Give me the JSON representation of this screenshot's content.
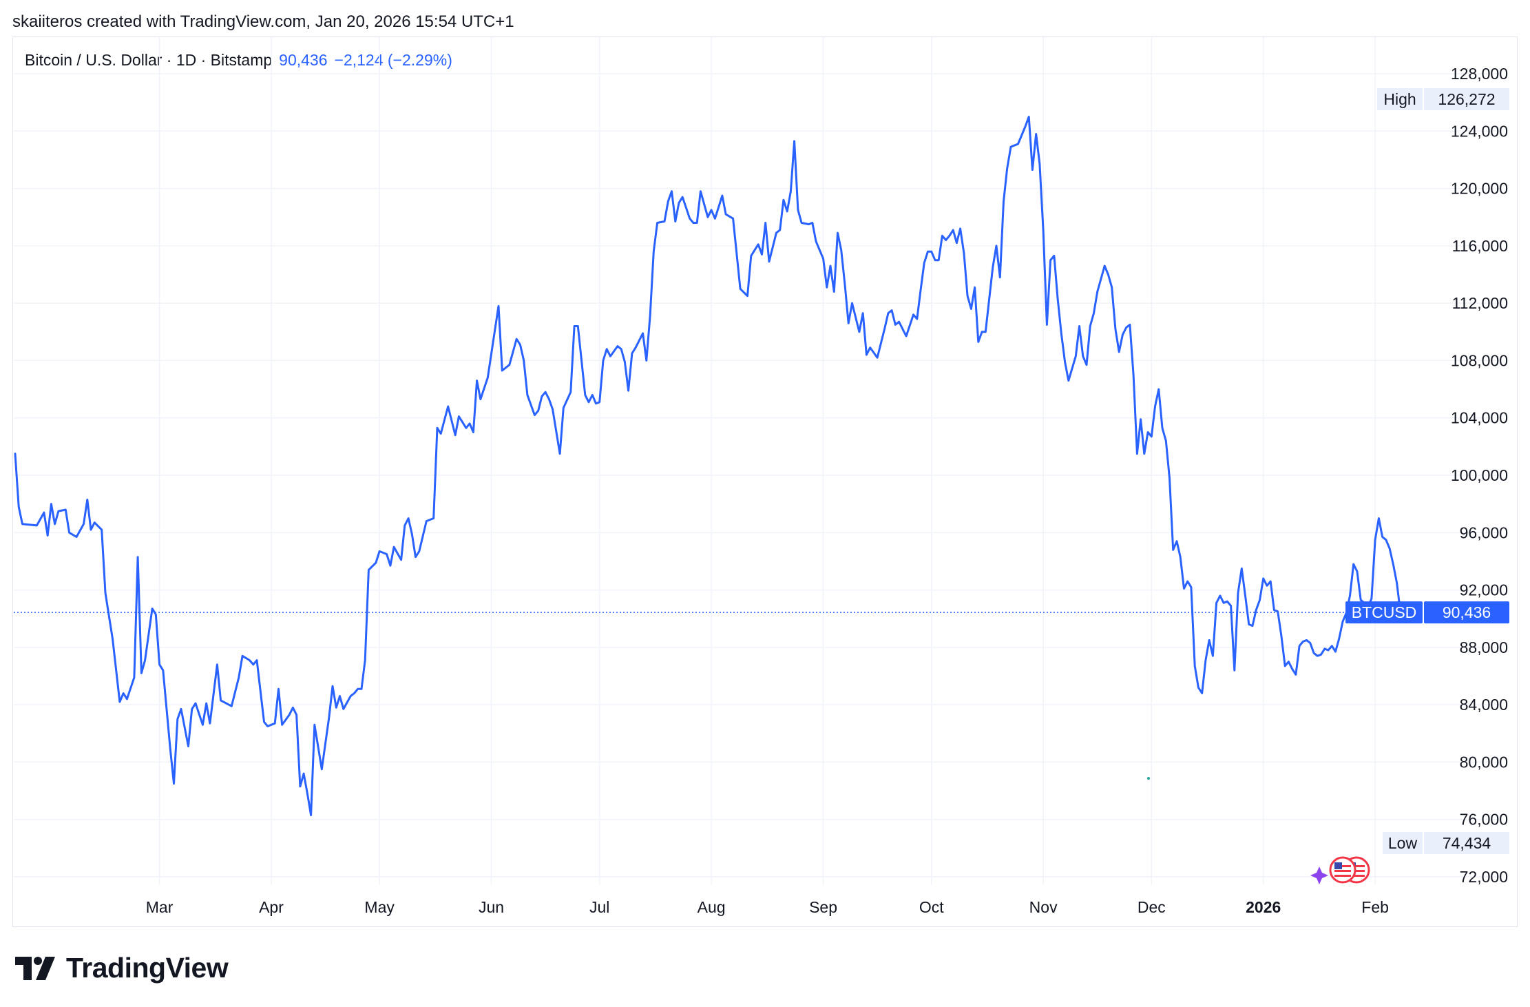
{
  "header": {
    "caption": "skaiiteros created with TradingView.com, Jan 20, 2026 15:54 UTC+1"
  },
  "legend": {
    "symbol": "Bitcoin / U.S. Dollar · 1D · Bitstamp",
    "last": "90,436",
    "change": "−2,124 (−2.29%)"
  },
  "badges": {
    "high_label": "High",
    "high_value": "126,272",
    "low_label": "Low",
    "low_value": "74,434",
    "price_label": "BTCUSD",
    "price_value": "90,436"
  },
  "footer": {
    "brand": "TradingView"
  },
  "colors": {
    "line": "#2962ff",
    "grid": "#f0f3fa",
    "badge_bg": "#eaf0fb",
    "price_badge": "#2962ff"
  },
  "icons": [
    "tradingview-logo-icon",
    "us-flag-event-icon",
    "sparkle-icon"
  ],
  "chart_data": {
    "type": "line",
    "series": [
      {
        "name": "BTCUSD"
      }
    ],
    "x_unit": "date",
    "x_ticks": [
      {
        "label": "Mar",
        "date": "2025-03-01"
      },
      {
        "label": "Apr",
        "date": "2025-04-01"
      },
      {
        "label": "May",
        "date": "2025-05-01"
      },
      {
        "label": "Jun",
        "date": "2025-06-01"
      },
      {
        "label": "Jul",
        "date": "2025-07-01"
      },
      {
        "label": "Aug",
        "date": "2025-08-01"
      },
      {
        "label": "Sep",
        "date": "2025-09-01"
      },
      {
        "label": "Oct",
        "date": "2025-10-01"
      },
      {
        "label": "Nov",
        "date": "2025-11-01"
      },
      {
        "label": "Dec",
        "date": "2025-12-01"
      },
      {
        "label": "2026",
        "date": "2026-01-01",
        "bold": true
      },
      {
        "label": "Feb",
        "date": "2026-02-01"
      }
    ],
    "y_ticks": [
      "72,000",
      "76,000",
      "80,000",
      "84,000",
      "88,000",
      "92,000",
      "96,000",
      "100,000",
      "104,000",
      "108,000",
      "112,000",
      "116,000",
      "120,000",
      "124,000",
      "128,000"
    ],
    "ylim": [
      72000,
      128000
    ],
    "xlim": [
      "2025-01-20",
      "2026-02-13"
    ],
    "grid": true,
    "last_price": 90436,
    "high": 126272,
    "low": 74434,
    "points": [
      [
        "2025-01-20",
        101500
      ],
      [
        "2025-01-21",
        97800
      ],
      [
        "2025-01-22",
        96600
      ],
      [
        "2025-01-26",
        96500
      ],
      [
        "2025-01-28",
        97400
      ],
      [
        "2025-01-29",
        95800
      ],
      [
        "2025-01-30",
        98000
      ],
      [
        "2025-01-31",
        96600
      ],
      [
        "2025-02-01",
        97500
      ],
      [
        "2025-02-03",
        97600
      ],
      [
        "2025-02-04",
        96000
      ],
      [
        "2025-02-06",
        95700
      ],
      [
        "2025-02-08",
        96600
      ],
      [
        "2025-02-09",
        98300
      ],
      [
        "2025-02-10",
        96200
      ],
      [
        "2025-02-11",
        96700
      ],
      [
        "2025-02-13",
        96200
      ],
      [
        "2025-02-14",
        91800
      ],
      [
        "2025-02-16",
        88600
      ],
      [
        "2025-02-18",
        84200
      ],
      [
        "2025-02-19",
        84800
      ],
      [
        "2025-02-20",
        84400
      ],
      [
        "2025-02-22",
        85900
      ],
      [
        "2025-02-23",
        94300
      ],
      [
        "2025-02-24",
        86200
      ],
      [
        "2025-02-25",
        87100
      ],
      [
        "2025-02-27",
        90700
      ],
      [
        "2025-02-28",
        90300
      ],
      [
        "2025-03-01",
        86800
      ],
      [
        "2025-03-02",
        86400
      ],
      [
        "2025-03-04",
        80900
      ],
      [
        "2025-03-05",
        78500
      ],
      [
        "2025-03-06",
        83000
      ],
      [
        "2025-03-07",
        83700
      ],
      [
        "2025-03-09",
        81100
      ],
      [
        "2025-03-10",
        83700
      ],
      [
        "2025-03-11",
        84100
      ],
      [
        "2025-03-13",
        82600
      ],
      [
        "2025-03-14",
        84100
      ],
      [
        "2025-03-15",
        82700
      ],
      [
        "2025-03-17",
        86800
      ],
      [
        "2025-03-18",
        84300
      ],
      [
        "2025-03-21",
        83900
      ],
      [
        "2025-03-23",
        85900
      ],
      [
        "2025-03-24",
        87400
      ],
      [
        "2025-03-26",
        87100
      ],
      [
        "2025-03-27",
        86800
      ],
      [
        "2025-03-28",
        87100
      ],
      [
        "2025-03-30",
        82800
      ],
      [
        "2025-03-31",
        82500
      ],
      [
        "2025-04-02",
        82700
      ],
      [
        "2025-04-03",
        85100
      ],
      [
        "2025-04-04",
        82600
      ],
      [
        "2025-04-06",
        83300
      ],
      [
        "2025-04-07",
        83800
      ],
      [
        "2025-04-08",
        83300
      ],
      [
        "2025-04-09",
        78300
      ],
      [
        "2025-04-10",
        79200
      ],
      [
        "2025-04-11",
        77800
      ],
      [
        "2025-04-12",
        76300
      ],
      [
        "2025-04-13",
        82600
      ],
      [
        "2025-04-15",
        79500
      ],
      [
        "2025-04-17",
        83100
      ],
      [
        "2025-04-18",
        85300
      ],
      [
        "2025-04-19",
        83800
      ],
      [
        "2025-04-20",
        84600
      ],
      [
        "2025-04-21",
        83700
      ],
      [
        "2025-04-23",
        84600
      ],
      [
        "2025-04-24",
        84800
      ],
      [
        "2025-04-25",
        85100
      ],
      [
        "2025-04-26",
        85100
      ],
      [
        "2025-04-27",
        87100
      ],
      [
        "2025-04-28",
        93400
      ],
      [
        "2025-04-30",
        93900
      ],
      [
        "2025-05-01",
        94700
      ],
      [
        "2025-05-03",
        94500
      ],
      [
        "2025-05-04",
        93700
      ],
      [
        "2025-05-05",
        95000
      ],
      [
        "2025-05-07",
        94100
      ],
      [
        "2025-05-08",
        96500
      ],
      [
        "2025-05-09",
        97000
      ],
      [
        "2025-05-10",
        95900
      ],
      [
        "2025-05-11",
        94300
      ],
      [
        "2025-05-12",
        94700
      ],
      [
        "2025-05-14",
        96800
      ],
      [
        "2025-05-16",
        97000
      ],
      [
        "2025-05-17",
        103300
      ],
      [
        "2025-05-18",
        102900
      ],
      [
        "2025-05-20",
        104800
      ],
      [
        "2025-05-22",
        102800
      ],
      [
        "2025-05-23",
        104100
      ],
      [
        "2025-05-25",
        103300
      ],
      [
        "2025-05-26",
        103600
      ],
      [
        "2025-05-27",
        103000
      ],
      [
        "2025-05-28",
        106600
      ],
      [
        "2025-05-29",
        105300
      ],
      [
        "2025-05-31",
        106800
      ],
      [
        "2025-06-03",
        111800
      ],
      [
        "2025-06-04",
        107300
      ],
      [
        "2025-06-06",
        107700
      ],
      [
        "2025-06-08",
        109500
      ],
      [
        "2025-06-09",
        109100
      ],
      [
        "2025-06-10",
        108000
      ],
      [
        "2025-06-11",
        105600
      ],
      [
        "2025-06-13",
        104200
      ],
      [
        "2025-06-14",
        104500
      ],
      [
        "2025-06-15",
        105500
      ],
      [
        "2025-06-16",
        105800
      ],
      [
        "2025-06-17",
        105300
      ],
      [
        "2025-06-18",
        104600
      ],
      [
        "2025-06-20",
        101500
      ],
      [
        "2025-06-21",
        104700
      ],
      [
        "2025-06-23",
        105800
      ],
      [
        "2025-06-24",
        110400
      ],
      [
        "2025-06-25",
        110400
      ],
      [
        "2025-06-27",
        105600
      ],
      [
        "2025-06-28",
        105100
      ],
      [
        "2025-06-29",
        105600
      ],
      [
        "2025-06-30",
        105000
      ],
      [
        "2025-07-01",
        105100
      ],
      [
        "2025-07-02",
        108000
      ],
      [
        "2025-07-03",
        108800
      ],
      [
        "2025-07-04",
        108300
      ],
      [
        "2025-07-06",
        109000
      ],
      [
        "2025-07-07",
        108800
      ],
      [
        "2025-07-08",
        107900
      ],
      [
        "2025-07-09",
        105900
      ],
      [
        "2025-07-10",
        108500
      ],
      [
        "2025-07-11",
        108900
      ],
      [
        "2025-07-13",
        109900
      ],
      [
        "2025-07-14",
        108000
      ],
      [
        "2025-07-15",
        111100
      ],
      [
        "2025-07-16",
        115600
      ],
      [
        "2025-07-17",
        117600
      ],
      [
        "2025-07-19",
        117700
      ],
      [
        "2025-07-20",
        119100
      ],
      [
        "2025-07-21",
        119800
      ],
      [
        "2025-07-22",
        117700
      ],
      [
        "2025-07-23",
        119000
      ],
      [
        "2025-07-24",
        119400
      ],
      [
        "2025-07-26",
        117900
      ],
      [
        "2025-07-27",
        117600
      ],
      [
        "2025-07-28",
        117600
      ],
      [
        "2025-07-29",
        119800
      ],
      [
        "2025-07-31",
        118000
      ],
      [
        "2025-08-01",
        118500
      ],
      [
        "2025-08-02",
        117900
      ],
      [
        "2025-08-04",
        119500
      ],
      [
        "2025-08-05",
        118200
      ],
      [
        "2025-08-07",
        117900
      ],
      [
        "2025-08-09",
        113000
      ],
      [
        "2025-08-11",
        112500
      ],
      [
        "2025-08-12",
        115300
      ],
      [
        "2025-08-14",
        116100
      ],
      [
        "2025-08-15",
        115400
      ],
      [
        "2025-08-16",
        117600
      ],
      [
        "2025-08-17",
        114900
      ],
      [
        "2025-08-19",
        116900
      ],
      [
        "2025-08-20",
        117100
      ],
      [
        "2025-08-21",
        119200
      ],
      [
        "2025-08-22",
        118400
      ],
      [
        "2025-08-23",
        119800
      ],
      [
        "2025-08-24",
        123300
      ],
      [
        "2025-08-25",
        118500
      ],
      [
        "2025-08-26",
        117600
      ],
      [
        "2025-08-28",
        117500
      ],
      [
        "2025-08-29",
        117600
      ],
      [
        "2025-08-30",
        116300
      ],
      [
        "2025-09-01",
        115100
      ],
      [
        "2025-09-02",
        113100
      ],
      [
        "2025-09-03",
        114600
      ],
      [
        "2025-09-04",
        112800
      ],
      [
        "2025-09-05",
        116900
      ],
      [
        "2025-09-06",
        115700
      ],
      [
        "2025-09-07",
        113300
      ],
      [
        "2025-09-08",
        110600
      ],
      [
        "2025-09-09",
        112000
      ],
      [
        "2025-09-11",
        110000
      ],
      [
        "2025-09-12",
        111300
      ],
      [
        "2025-09-13",
        108400
      ],
      [
        "2025-09-14",
        108900
      ],
      [
        "2025-09-16",
        108200
      ],
      [
        "2025-09-18",
        110200
      ],
      [
        "2025-09-19",
        111300
      ],
      [
        "2025-09-20",
        111500
      ],
      [
        "2025-09-21",
        110500
      ],
      [
        "2025-09-22",
        110700
      ],
      [
        "2025-09-24",
        109700
      ],
      [
        "2025-09-26",
        111200
      ],
      [
        "2025-09-27",
        110900
      ],
      [
        "2025-09-28",
        112900
      ],
      [
        "2025-09-29",
        114800
      ],
      [
        "2025-09-30",
        115600
      ],
      [
        "2025-10-01",
        115600
      ],
      [
        "2025-10-02",
        115000
      ],
      [
        "2025-10-03",
        115000
      ],
      [
        "2025-10-04",
        116700
      ],
      [
        "2025-10-05",
        116400
      ],
      [
        "2025-10-06",
        116700
      ],
      [
        "2025-10-07",
        117100
      ],
      [
        "2025-10-08",
        116200
      ],
      [
        "2025-10-09",
        117200
      ],
      [
        "2025-10-10",
        115500
      ],
      [
        "2025-10-11",
        112500
      ],
      [
        "2025-10-12",
        111600
      ],
      [
        "2025-10-13",
        113100
      ],
      [
        "2025-10-14",
        109300
      ],
      [
        "2025-10-15",
        110000
      ],
      [
        "2025-10-16",
        110000
      ],
      [
        "2025-10-18",
        114500
      ],
      [
        "2025-10-19",
        116000
      ],
      [
        "2025-10-20",
        113800
      ],
      [
        "2025-10-21",
        119100
      ],
      [
        "2025-10-22",
        121400
      ],
      [
        "2025-10-23",
        122900
      ],
      [
        "2025-10-25",
        123100
      ],
      [
        "2025-10-27",
        124300
      ],
      [
        "2025-10-28",
        125000
      ],
      [
        "2025-10-29",
        121300
      ],
      [
        "2025-10-30",
        123800
      ],
      [
        "2025-10-31",
        121700
      ],
      [
        "2025-11-01",
        117100
      ],
      [
        "2025-11-02",
        110500
      ],
      [
        "2025-11-03",
        115000
      ],
      [
        "2025-11-04",
        115300
      ],
      [
        "2025-11-05",
        112300
      ],
      [
        "2025-11-06",
        109900
      ],
      [
        "2025-11-07",
        107900
      ],
      [
        "2025-11-08",
        106600
      ],
      [
        "2025-11-10",
        108300
      ],
      [
        "2025-11-11",
        110400
      ],
      [
        "2025-11-12",
        108300
      ],
      [
        "2025-11-13",
        107700
      ],
      [
        "2025-11-14",
        110400
      ],
      [
        "2025-11-15",
        111300
      ],
      [
        "2025-11-16",
        112800
      ],
      [
        "2025-11-18",
        114600
      ],
      [
        "2025-11-19",
        114000
      ],
      [
        "2025-11-20",
        113100
      ],
      [
        "2025-11-21",
        110200
      ],
      [
        "2025-11-22",
        108600
      ],
      [
        "2025-11-23",
        109800
      ],
      [
        "2025-11-24",
        110300
      ],
      [
        "2025-11-25",
        110500
      ],
      [
        "2025-11-26",
        107000
      ],
      [
        "2025-11-27",
        101500
      ],
      [
        "2025-11-28",
        103900
      ],
      [
        "2025-11-29",
        101500
      ],
      [
        "2025-11-30",
        103000
      ],
      [
        "2025-12-01",
        102700
      ],
      [
        "2025-12-02",
        104800
      ],
      [
        "2025-12-03",
        106000
      ],
      [
        "2025-12-04",
        103300
      ],
      [
        "2025-12-05",
        102400
      ],
      [
        "2025-12-06",
        99800
      ],
      [
        "2025-12-07",
        94800
      ],
      [
        "2025-12-08",
        95400
      ],
      [
        "2025-12-09",
        94300
      ],
      [
        "2025-12-10",
        92100
      ],
      [
        "2025-12-11",
        92600
      ],
      [
        "2025-12-12",
        92200
      ],
      [
        "2025-12-13",
        86700
      ],
      [
        "2025-12-14",
        85200
      ],
      [
        "2025-12-15",
        84800
      ],
      [
        "2025-12-16",
        87100
      ],
      [
        "2025-12-17",
        88500
      ],
      [
        "2025-12-18",
        87400
      ],
      [
        "2025-12-19",
        91100
      ],
      [
        "2025-12-20",
        91600
      ],
      [
        "2025-12-21",
        91100
      ],
      [
        "2025-12-22",
        91200
      ],
      [
        "2025-12-23",
        90900
      ],
      [
        "2025-12-24",
        86400
      ],
      [
        "2025-12-25",
        91800
      ],
      [
        "2025-12-26",
        93500
      ],
      [
        "2025-12-27",
        91600
      ],
      [
        "2025-12-28",
        89600
      ],
      [
        "2025-12-29",
        89500
      ],
      [
        "2025-12-30",
        90600
      ],
      [
        "2025-12-31",
        91300
      ],
      [
        "2026-01-01",
        92800
      ],
      [
        "2026-01-02",
        92300
      ],
      [
        "2026-01-03",
        92600
      ],
      [
        "2026-01-04",
        90600
      ],
      [
        "2026-01-05",
        90500
      ],
      [
        "2026-01-06",
        88800
      ],
      [
        "2026-01-07",
        86700
      ],
      [
        "2026-01-08",
        87000
      ],
      [
        "2026-01-09",
        86500
      ],
      [
        "2026-01-10",
        86100
      ],
      [
        "2026-01-11",
        88100
      ],
      [
        "2026-01-12",
        88400
      ],
      [
        "2026-01-13",
        88500
      ],
      [
        "2026-01-14",
        88300
      ],
      [
        "2026-01-15",
        87600
      ],
      [
        "2026-01-16",
        87400
      ],
      [
        "2026-01-17",
        87500
      ],
      [
        "2026-01-18",
        87900
      ],
      [
        "2026-01-19",
        87800
      ],
      [
        "2026-01-20",
        88100
      ],
      [
        "2026-01-21",
        87700
      ],
      [
        "2026-01-22",
        88600
      ],
      [
        "2026-01-23",
        89800
      ],
      [
        "2026-01-24",
        90400
      ],
      [
        "2026-01-25",
        91600
      ],
      [
        "2026-01-26",
        93800
      ],
      [
        "2026-01-27",
        93300
      ],
      [
        "2026-01-28",
        91300
      ],
      [
        "2026-01-29",
        91100
      ],
      [
        "2026-01-30",
        90800
      ],
      [
        "2026-01-31",
        91400
      ],
      [
        "2026-02-01",
        95500
      ],
      [
        "2026-02-02",
        97000
      ],
      [
        "2026-02-03",
        95700
      ],
      [
        "2026-02-04",
        95500
      ],
      [
        "2026-02-05",
        94900
      ],
      [
        "2026-02-06",
        93800
      ],
      [
        "2026-02-07",
        92500
      ],
      [
        "2026-02-08",
        90436
      ]
    ]
  }
}
